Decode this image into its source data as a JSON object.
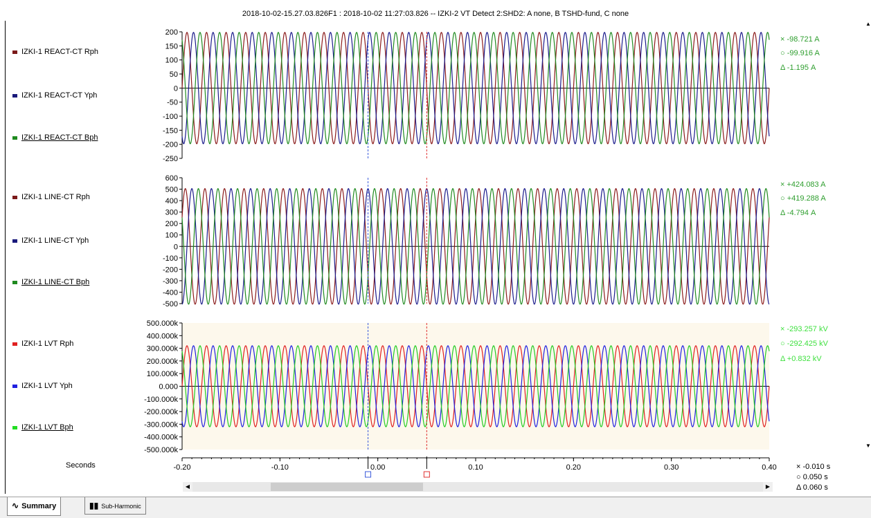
{
  "title": "2018-10-02-15.27.03.826F1 : 2018-10-02 11:27:03.826 -- IZKI-2 VT Detect 2:SHD2: A none, B TSHD-fund, C none",
  "x_axis_label": "Seconds",
  "time_readout": {
    "cross": "× -0.010 s",
    "circle": "○ 0.050 s",
    "delta": "Δ 0.060 s"
  },
  "tabs": [
    {
      "label": "Summary",
      "icon": "waveform-icon"
    },
    {
      "label": "Sub-Harmonic",
      "icon": "bar-chart-icon"
    }
  ],
  "panels": [
    {
      "legend": [
        {
          "label": "IZKI-1 REACT-CT Rph",
          "color": "#7b1a1a",
          "underline": false
        },
        {
          "label": "IZKI-1 REACT-CT Yph",
          "color": "#1a1a7b",
          "underline": false
        },
        {
          "label": "IZKI-1 REACT-CT Bph",
          "color": "#1f8a1f",
          "underline": true
        }
      ],
      "readout": {
        "color": "#2e9e2e",
        "cross": "× -98.721  A",
        "circle": "○ -99.916  A",
        "delta": "Δ -1.195  A"
      }
    },
    {
      "legend": [
        {
          "label": "IZKI-1 LINE-CT Rph",
          "color": "#7b1a1a",
          "underline": false
        },
        {
          "label": "IZKI-1 LINE-CT Yph",
          "color": "#1a1a7b",
          "underline": false
        },
        {
          "label": "IZKI-1 LINE-CT Bph",
          "color": "#1f8a1f",
          "underline": true
        }
      ],
      "readout": {
        "color": "#2e9e2e",
        "cross": "× +424.083  A",
        "circle": "○ +419.288  A",
        "delta": "Δ -4.794  A"
      }
    },
    {
      "legend": [
        {
          "label": "IZKI-1 LVT Rph",
          "color": "#e02020",
          "underline": false
        },
        {
          "label": "IZKI-1 LVT Yph",
          "color": "#2020e0",
          "underline": false
        },
        {
          "label": "IZKI-1 LVT Bph",
          "color": "#22dd22",
          "underline": true
        }
      ],
      "readout": {
        "color": "#3fe03f",
        "cross": "× -293.257 kV",
        "circle": "○ -292.425 kV",
        "delta": "Δ +0.832 kV"
      }
    }
  ],
  "chart_data": {
    "type": "line",
    "frequency_hz": 50,
    "xlim": [
      -0.2,
      0.4
    ],
    "x_ticks": [
      "-0.20",
      "-0.10",
      "0.00",
      "0.10",
      "0.20",
      "0.30",
      "0.40"
    ],
    "x_tick_values": [
      -0.2,
      -0.1,
      0.0,
      0.1,
      0.2,
      0.3,
      0.4
    ],
    "cursors": [
      {
        "name": "cross",
        "x": -0.01,
        "color": "#3b5bdb"
      },
      {
        "name": "circle",
        "x": 0.05,
        "color": "#e03131"
      }
    ],
    "panels": [
      {
        "ylim": [
          -250,
          200
        ],
        "y_ticks": [
          "200",
          "150",
          "100",
          "50",
          "0",
          "-50",
          "-100",
          "-150",
          "-200",
          "-250"
        ],
        "y_tick_values": [
          200,
          150,
          100,
          50,
          0,
          -50,
          -100,
          -150,
          -200,
          -250
        ],
        "background": "#ffffff",
        "series": [
          {
            "name": "IZKI-1 REACT-CT Rph",
            "amplitude": 198,
            "phase_deg": 0,
            "color": "#8b1a1a"
          },
          {
            "name": "IZKI-1 REACT-CT Yph",
            "amplitude": 198,
            "phase_deg": -120,
            "color": "#1a1a8b"
          },
          {
            "name": "IZKI-1 REACT-CT Bph",
            "amplitude": 198,
            "phase_deg": 120,
            "color": "#1f8a1f"
          }
        ]
      },
      {
        "ylim": [
          -500,
          600
        ],
        "y_ticks": [
          "600",
          "500",
          "400",
          "300",
          "200",
          "100",
          "0",
          "-100",
          "-200",
          "-300",
          "-400",
          "-500"
        ],
        "y_tick_values": [
          600,
          500,
          400,
          300,
          200,
          100,
          0,
          -100,
          -200,
          -300,
          -400,
          -500
        ],
        "background": "#ffffff",
        "series": [
          {
            "name": "IZKI-1 LINE-CT Rph",
            "amplitude": 505,
            "phase_deg": 30,
            "color": "#8b1a1a"
          },
          {
            "name": "IZKI-1 LINE-CT Yph",
            "amplitude": 505,
            "phase_deg": -90,
            "color": "#1a1a8b"
          },
          {
            "name": "IZKI-1 LINE-CT Bph",
            "amplitude": 505,
            "phase_deg": 150,
            "color": "#1f8a1f"
          }
        ]
      },
      {
        "ylim": [
          -500000,
          500000
        ],
        "y_ticks": [
          "500.000k",
          "400.000k",
          "300.000k",
          "200.000k",
          "100.000k",
          "0.000",
          "-100.000k",
          "-200.000k",
          "-300.000k",
          "-400.000k",
          "-500.000k"
        ],
        "y_tick_values": [
          500000,
          400000,
          300000,
          200000,
          100000,
          0,
          -100000,
          -200000,
          -300000,
          -400000,
          -500000
        ],
        "background": "#fdf8ec",
        "series": [
          {
            "name": "IZKI-1 LVT Rph",
            "amplitude": 320000,
            "phase_deg": 0,
            "color": "#e02020"
          },
          {
            "name": "IZKI-1 LVT Yph",
            "amplitude": 320000,
            "phase_deg": -120,
            "color": "#2020e0"
          },
          {
            "name": "IZKI-1 LVT Bph",
            "amplitude": 320000,
            "phase_deg": 120,
            "color": "#22cc22"
          }
        ]
      }
    ]
  }
}
